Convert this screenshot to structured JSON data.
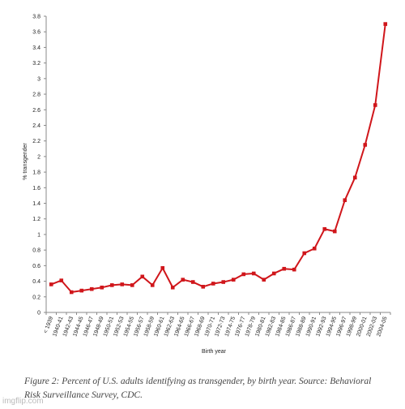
{
  "chart_data": {
    "type": "line",
    "title": "",
    "xlabel": "Birth year",
    "ylabel": "% transgender",
    "ylim": [
      0,
      3.8
    ],
    "yticks": [
      0,
      0.2,
      0.4,
      0.6,
      0.8,
      1,
      1.2,
      1.4,
      1.6,
      1.8,
      2,
      2.2,
      2.4,
      2.6,
      2.8,
      3,
      3.2,
      3.4,
      3.6,
      3.8
    ],
    "grid": false,
    "line_color": "#d0161b",
    "categories": [
      "< 1939",
      "1940-41",
      "1942-43",
      "1944-45",
      "1946-47",
      "1948-49",
      "1950-51",
      "1952-53",
      "1954-55",
      "1956-57",
      "1958-59",
      "1960-61",
      "1962-63",
      "1964-65",
      "1966-67",
      "1968-69",
      "1970-71",
      "1972-73",
      "1974-75",
      "1976-77",
      "1978-79",
      "1980-81",
      "1982-83",
      "1984-85",
      "1986-87",
      "1988-89",
      "1990-91",
      "1992-93",
      "1994-95",
      "1996-97",
      "1998-99",
      "2000-01",
      "2002-03",
      "2004-05"
    ],
    "values": [
      0.36,
      0.41,
      0.26,
      0.28,
      0.3,
      0.32,
      0.35,
      0.36,
      0.35,
      0.46,
      0.35,
      0.57,
      0.32,
      0.42,
      0.39,
      0.33,
      0.37,
      0.39,
      0.42,
      0.49,
      0.5,
      0.42,
      0.5,
      0.56,
      0.55,
      0.76,
      0.82,
      1.07,
      1.04,
      1.44,
      1.73,
      2.15,
      2.66,
      3.7
    ]
  },
  "caption": {
    "line1": "Figure 2: Percent of U.S. adults identifying as transgender, by birth year. Source: Behavioral",
    "line2": "Risk Surveillance Survey, CDC."
  },
  "watermark": "imgflip.com"
}
